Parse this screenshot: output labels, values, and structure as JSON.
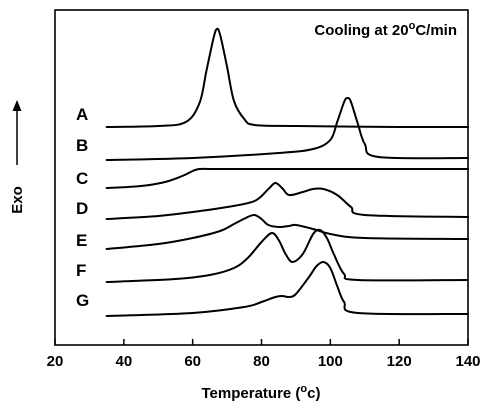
{
  "chart_data": {
    "type": "line",
    "title": "Cooling at 20°C/min",
    "title_parts": {
      "main": "Cooling at 20",
      "superscript": "o",
      "suffix": "C/min"
    },
    "xlabel": "Temperature (°C)",
    "xlabel_parts": {
      "prefix": "Temperature (",
      "superscript": "o",
      "suffix": "c)"
    },
    "ylabel": "Exo",
    "ylabel_direction": "up",
    "xlim": [
      20,
      140
    ],
    "x_ticks": [
      20,
      40,
      60,
      80,
      100,
      120,
      140
    ],
    "y_ticks_shown": false,
    "grid": false,
    "legend": "curve labels at left",
    "series": [
      {
        "name": "A",
        "x": [
          35,
          50,
          58,
          62,
          64,
          66,
          67,
          68,
          70,
          72,
          75,
          78,
          90,
          120,
          140
        ],
        "y": [
          0.0,
          0.05,
          0.25,
          1.2,
          2.8,
          4.4,
          4.9,
          4.6,
          3.0,
          1.3,
          0.4,
          0.1,
          0.05,
          0.0,
          0.0
        ]
      },
      {
        "name": "B",
        "x": [
          35,
          60,
          85,
          95,
          100,
          102,
          104,
          105,
          106,
          108,
          110,
          114,
          140
        ],
        "y": [
          0.0,
          0.1,
          0.35,
          0.55,
          1.0,
          1.9,
          2.9,
          3.1,
          2.9,
          1.8,
          0.8,
          0.15,
          0.1
        ]
      },
      {
        "name": "C",
        "x": [
          35,
          45,
          52,
          57,
          60,
          62,
          66,
          80,
          140
        ],
        "y": [
          0.0,
          0.1,
          0.3,
          0.6,
          0.85,
          0.95,
          0.95,
          0.95,
          0.95
        ]
      },
      {
        "name": "D",
        "x": [
          35,
          50,
          60,
          70,
          78,
          82,
          84,
          86,
          88,
          92,
          95,
          98,
          102,
          106,
          110,
          140
        ],
        "y": [
          0.0,
          0.15,
          0.35,
          0.6,
          0.9,
          1.5,
          1.8,
          1.55,
          1.2,
          1.35,
          1.5,
          1.5,
          1.2,
          0.6,
          0.2,
          0.1
        ]
      },
      {
        "name": "E",
        "x": [
          35,
          50,
          60,
          68,
          72,
          76,
          78,
          80,
          82,
          85,
          88,
          90,
          95,
          100,
          110,
          140
        ],
        "y": [
          0.0,
          0.25,
          0.55,
          0.9,
          1.25,
          1.6,
          1.7,
          1.5,
          1.2,
          1.1,
          1.15,
          1.2,
          1.0,
          0.75,
          0.55,
          0.5
        ]
      },
      {
        "name": "F",
        "x": [
          35,
          55,
          65,
          72,
          76,
          80,
          83,
          85,
          87,
          89,
          92,
          95,
          97,
          99,
          101,
          104,
          108,
          140
        ],
        "y": [
          0.0,
          0.15,
          0.35,
          0.7,
          1.2,
          2.0,
          2.45,
          2.1,
          1.4,
          1.0,
          1.4,
          2.4,
          2.6,
          2.2,
          1.4,
          0.4,
          0.1,
          0.1
        ]
      },
      {
        "name": "G",
        "x": [
          35,
          60,
          75,
          80,
          84,
          86,
          88,
          90,
          94,
          96,
          98,
          100,
          102,
          104,
          108,
          140
        ],
        "y": [
          0.0,
          0.15,
          0.45,
          0.7,
          0.95,
          1.0,
          0.95,
          1.1,
          2.0,
          2.5,
          2.7,
          2.4,
          1.5,
          0.7,
          0.15,
          0.1
        ]
      }
    ]
  }
}
